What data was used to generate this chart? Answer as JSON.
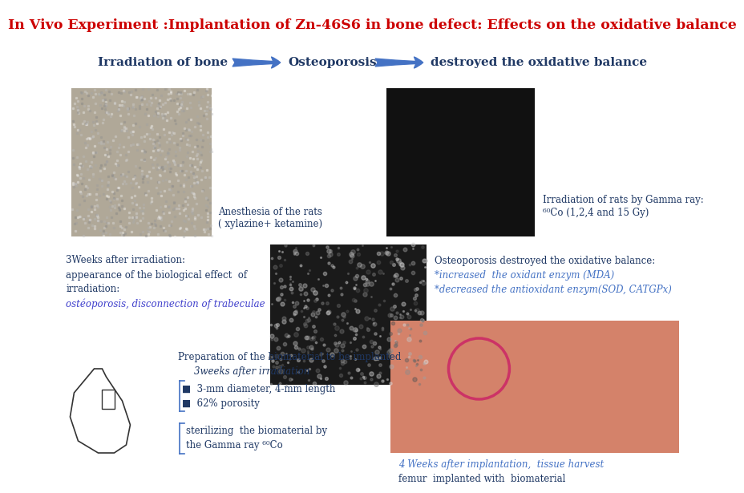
{
  "title": "In Vivo Experiment :Implantation of Zn-46S6 in bone defect: Effects on the oxidative balance",
  "title_color": "#cc0000",
  "title_fontsize": 12.5,
  "background_color": "#ffffff",
  "arrow_color": "#4472c4",
  "flow_label1": "Irradiation of bone",
  "flow_label2": "Osteoporosis",
  "flow_label3": "destroyed the oxidative balance",
  "flow_label_color": "#1f3864",
  "flow_label_fontsize": 11,
  "img1_label1": "Anesthesia of the rats",
  "img1_label2": "( xylazine+ ketamine)",
  "img2_label1": "Irradiation of rats by Gamma ray:",
  "img2_label2": "⁶⁰Co (1,2,4 and 15 Gy)",
  "left_text_line1": "3Weeks after irradiation:",
  "left_text_line2": "appearance of the biological effect  of",
  "left_text_line3": "irradiation:",
  "left_text_line4": "ostéoporosis, disconnection of trabeculae",
  "left_text_color": "#1f3864",
  "left_text_italic_color": "#4040cc",
  "osteo_text_line1": "Osteoporosis destroyed the oxidative balance:",
  "osteo_text_line2": "*increased  the oxidant enzym (MDA)",
  "osteo_text_line3": "*decreased the antioxidant enzym(SOD, CATGPx)",
  "osteo_text_color": "#1f3864",
  "osteo_text_color2": "#4472c4",
  "prep_text_line1": "Preparation of the biomaterial to be implanted",
  "prep_text_line2": "3weeks after irradiation",
  "bullet_text1": "3-mm diameter, 4-mm length",
  "bullet_text2": "62% porosity",
  "sterilize_text1": "sterilizing  the biomaterial by",
  "sterilize_text2": "the Gamma ray ⁶⁰Co",
  "sterilize_color": "#1f3864",
  "bottom_right_text1": "4 Weeks after implantation,  tissue harvest",
  "bottom_right_text2": "femur  implanted with  biomaterial",
  "bottom_right_text_color1": "#4472c4",
  "bottom_right_text_color2": "#1f3864",
  "text_fontsize": 9,
  "small_fontsize": 8.5
}
